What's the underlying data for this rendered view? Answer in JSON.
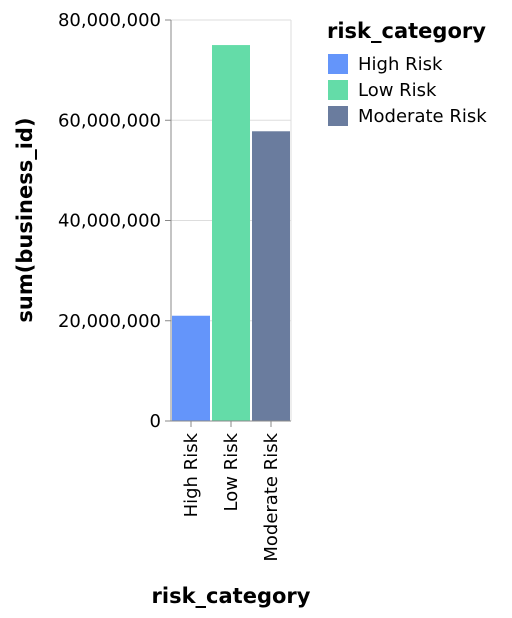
{
  "chart_data": {
    "type": "bar",
    "categories": [
      "High Risk",
      "Low Risk",
      "Moderate Risk"
    ],
    "values": [
      21000000,
      75000000,
      57800000
    ],
    "colors": [
      "#6495fa",
      "#64dca8",
      "#6a7c9e"
    ],
    "xlabel": "risk_category",
    "ylabel": "sum(business_id)",
    "ylim": [
      0,
      80000000
    ],
    "yticks": [
      0,
      20000000,
      40000000,
      60000000,
      80000000
    ],
    "ytick_labels": [
      "0",
      "20,000,000",
      "40,000,000",
      "60,000,000",
      "80,000,000"
    ],
    "grid": true,
    "legend": {
      "title": "risk_category",
      "placement": "top-right",
      "entries": [
        "High Risk",
        "Low Risk",
        "Moderate Risk"
      ]
    }
  }
}
